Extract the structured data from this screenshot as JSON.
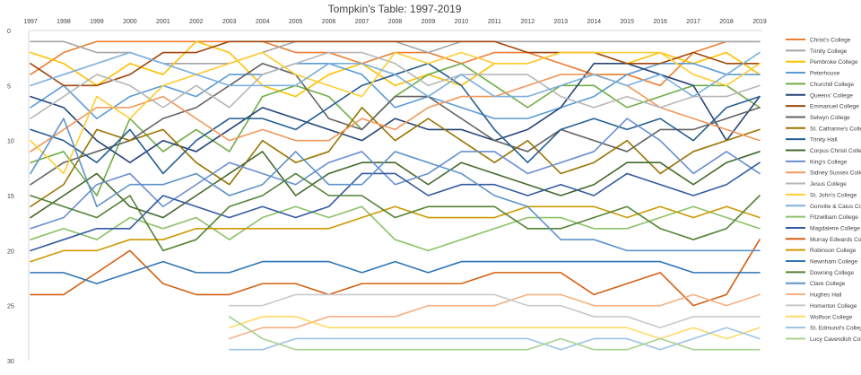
{
  "chart_data": {
    "type": "line",
    "title": "Tompkin's Table: 1997-2019",
    "x": [
      "1997",
      "1998",
      "1999",
      "2000",
      "2001",
      "2002",
      "2003",
      "2004",
      "2005",
      "2006",
      "2007",
      "2008",
      "2009",
      "2010",
      "2011",
      "2012",
      "2013",
      "2014",
      "2015",
      "2016",
      "2017",
      "2018",
      "2019"
    ],
    "ylim": [
      0,
      30
    ],
    "y_inverted": true,
    "y_ticks": [
      0,
      5,
      10,
      15,
      20,
      25,
      30
    ],
    "grid": false,
    "legend": "right",
    "series": [
      {
        "name": "Christ's College",
        "color": "#ED7D31",
        "values": [
          4,
          2,
          1,
          1,
          1,
          1,
          1,
          1,
          2,
          2,
          3,
          2,
          2,
          3,
          2,
          2,
          3,
          4,
          4,
          5,
          2,
          1,
          1
        ]
      },
      {
        "name": "Trinity College",
        "color": "#A5A5A5",
        "values": [
          1,
          1,
          2,
          2,
          3,
          3,
          3,
          2,
          1,
          1,
          1,
          1,
          2,
          1,
          1,
          1,
          1,
          1,
          1,
          1,
          1,
          1,
          1
        ]
      },
      {
        "name": "Pembroke College",
        "color": "#FFC000",
        "values": [
          2,
          3,
          5,
          3,
          4,
          1,
          2,
          5,
          6,
          4,
          3,
          5,
          4,
          5,
          3,
          3,
          2,
          2,
          3,
          2,
          3,
          2,
          4
        ]
      },
      {
        "name": "Peterhouse",
        "color": "#5B9BD5",
        "values": [
          7,
          5,
          8,
          6,
          5,
          6,
          4,
          4,
          3,
          3,
          4,
          7,
          6,
          7,
          8,
          8,
          7,
          6,
          4,
          3,
          3,
          4,
          4
        ]
      },
      {
        "name": "Churchill College",
        "color": "#70AD47",
        "values": [
          12,
          11,
          15,
          8,
          11,
          9,
          11,
          6,
          5,
          6,
          9,
          6,
          4,
          3,
          5,
          7,
          5,
          5,
          7,
          6,
          5,
          5,
          7
        ]
      },
      {
        "name": "Queens' College",
        "color": "#264478",
        "values": [
          6,
          7,
          10,
          12,
          10,
          11,
          9,
          7,
          8,
          9,
          10,
          8,
          9,
          9,
          10,
          9,
          7,
          3,
          3,
          4,
          5,
          10,
          6
        ]
      },
      {
        "name": "Emmanuel College",
        "color": "#9E480E",
        "values": [
          3,
          5,
          5,
          4,
          2,
          2,
          1,
          1,
          1,
          1,
          1,
          1,
          1,
          1,
          1,
          2,
          2,
          2,
          3,
          3,
          2,
          3,
          3
        ]
      },
      {
        "name": "Selwyn College",
        "color": "#636363",
        "values": [
          14,
          12,
          11,
          10,
          8,
          7,
          5,
          3,
          4,
          8,
          9,
          6,
          6,
          8,
          10,
          11,
          9,
          10,
          11,
          9,
          9,
          8,
          7
        ]
      },
      {
        "name": "St. Catharine's College",
        "color": "#997300",
        "values": [
          16,
          14,
          9,
          10,
          9,
          12,
          14,
          10,
          12,
          11,
          7,
          10,
          8,
          10,
          12,
          10,
          13,
          12,
          10,
          13,
          11,
          10,
          9
        ]
      },
      {
        "name": "Trinity Hall",
        "color": "#255E91",
        "values": [
          9,
          10,
          12,
          9,
          13,
          10,
          8,
          8,
          9,
          7,
          5,
          4,
          3,
          5,
          9,
          12,
          9,
          8,
          9,
          8,
          10,
          7,
          6
        ]
      },
      {
        "name": "Corpus Christi College",
        "color": "#43682B",
        "values": [
          17,
          15,
          13,
          16,
          17,
          15,
          13,
          11,
          15,
          13,
          12,
          12,
          14,
          12,
          13,
          14,
          15,
          14,
          12,
          12,
          14,
          12,
          11
        ]
      },
      {
        "name": "King's College",
        "color": "#698ED0",
        "values": [
          18,
          17,
          14,
          13,
          16,
          14,
          12,
          13,
          14,
          12,
          11,
          14,
          13,
          11,
          11,
          13,
          12,
          11,
          8,
          10,
          13,
          11,
          13
        ]
      },
      {
        "name": "Sidney Sussex College",
        "color": "#F1975A",
        "values": [
          11,
          9,
          7,
          7,
          6,
          8,
          10,
          9,
          10,
          10,
          8,
          9,
          7,
          6,
          6,
          5,
          4,
          4,
          5,
          7,
          8,
          9,
          10
        ]
      },
      {
        "name": "Jesus College",
        "color": "#B7B7B7",
        "values": [
          8,
          6,
          4,
          5,
          7,
          5,
          7,
          4,
          3,
          2,
          2,
          3,
          5,
          4,
          4,
          4,
          6,
          7,
          6,
          7,
          6,
          6,
          5
        ]
      },
      {
        "name": "St. John's College",
        "color": "#FFCD33",
        "values": [
          10,
          13,
          6,
          8,
          5,
          4,
          3,
          2,
          4,
          5,
          6,
          2,
          3,
          2,
          3,
          3,
          2,
          2,
          2,
          2,
          4,
          5,
          3
        ]
      },
      {
        "name": "Gonville & Caius College",
        "color": "#7CAFDD",
        "values": [
          5,
          4,
          3,
          2,
          3,
          4,
          5,
          5,
          5,
          3,
          3,
          4,
          6,
          4,
          6,
          6,
          5,
          4,
          5,
          4,
          6,
          4,
          2
        ]
      },
      {
        "name": "Fitzwilliam College",
        "color": "#8CC168",
        "values": [
          19,
          18,
          19,
          17,
          18,
          17,
          19,
          17,
          16,
          17,
          16,
          19,
          20,
          19,
          18,
          17,
          17,
          18,
          18,
          17,
          16,
          17,
          18
        ]
      },
      {
        "name": "Magdalene College",
        "color": "#335AA1",
        "values": [
          20,
          19,
          18,
          18,
          15,
          16,
          17,
          16,
          17,
          16,
          13,
          13,
          15,
          14,
          14,
          15,
          14,
          15,
          13,
          14,
          15,
          14,
          12
        ]
      },
      {
        "name": "Murray Edwards College",
        "color": "#D26012",
        "values": [
          24,
          24,
          22,
          20,
          23,
          24,
          24,
          23,
          23,
          24,
          23,
          23,
          23,
          23,
          22,
          22,
          22,
          24,
          23,
          22,
          25,
          24,
          19
        ]
      },
      {
        "name": "Robinson College",
        "color": "#CC9A00",
        "values": [
          21,
          20,
          20,
          19,
          19,
          18,
          18,
          18,
          18,
          18,
          17,
          16,
          17,
          17,
          17,
          16,
          16,
          16,
          17,
          16,
          17,
          16,
          17
        ]
      },
      {
        "name": "Newnham College",
        "color": "#2E75B6",
        "values": [
          22,
          22,
          23,
          22,
          21,
          22,
          22,
          21,
          21,
          21,
          22,
          21,
          22,
          21,
          21,
          21,
          21,
          21,
          21,
          21,
          22,
          22,
          22
        ]
      },
      {
        "name": "Downing College",
        "color": "#548235",
        "values": [
          15,
          16,
          17,
          15,
          20,
          19,
          16,
          15,
          13,
          15,
          15,
          17,
          16,
          16,
          16,
          18,
          18,
          17,
          16,
          18,
          19,
          18,
          15
        ]
      },
      {
        "name": "Clare College",
        "color": "#5E93C7",
        "values": [
          13,
          8,
          16,
          14,
          14,
          13,
          15,
          14,
          11,
          14,
          14,
          11,
          12,
          13,
          15,
          16,
          19,
          19,
          20,
          20,
          20,
          20,
          20
        ]
      },
      {
        "name": "Hughes Hall",
        "color": "#F4B183",
        "values": [
          null,
          null,
          null,
          null,
          null,
          null,
          28,
          27,
          27,
          26,
          26,
          26,
          25,
          25,
          25,
          24,
          24,
          25,
          25,
          25,
          24,
          25,
          24
        ]
      },
      {
        "name": "Homerton College",
        "color": "#C9C9C9",
        "values": [
          null,
          null,
          null,
          null,
          null,
          null,
          25,
          25,
          24,
          24,
          24,
          24,
          24,
          24,
          24,
          25,
          25,
          26,
          26,
          27,
          26,
          26,
          26
        ]
      },
      {
        "name": "Wolfson College",
        "color": "#FFD966",
        "values": [
          null,
          null,
          null,
          null,
          null,
          null,
          27,
          26,
          26,
          27,
          27,
          27,
          27,
          27,
          27,
          27,
          27,
          27,
          27,
          28,
          27,
          28,
          27
        ]
      },
      {
        "name": "St. Edmund's College",
        "color": "#9DC3E6",
        "values": [
          null,
          null,
          null,
          null,
          null,
          null,
          29,
          29,
          28,
          28,
          28,
          28,
          28,
          28,
          28,
          28,
          29,
          28,
          28,
          29,
          28,
          27,
          28
        ]
      },
      {
        "name": "Lucy Cavendish College",
        "color": "#A9D18E",
        "values": [
          null,
          null,
          null,
          null,
          null,
          null,
          26,
          28,
          29,
          29,
          29,
          29,
          29,
          29,
          29,
          29,
          28,
          29,
          29,
          28,
          29,
          29,
          29
        ]
      }
    ]
  }
}
